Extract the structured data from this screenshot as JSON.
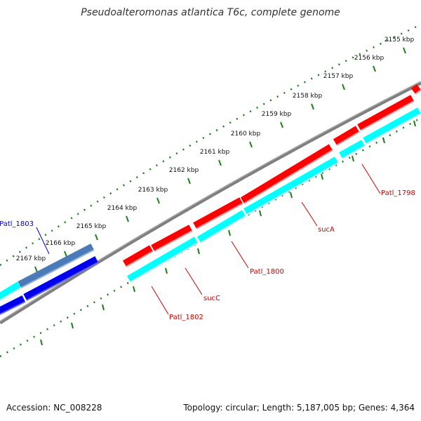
{
  "title": "Pseudoalteromonas atlantica T6c, complete genome",
  "accession": "Accession: NC_008228",
  "summary": "Topology: circular; Length: 5,187,005 bp; Genes: 4,364",
  "colors": {
    "backbone": "#7f7f7f",
    "forward_cds": "#ff0000",
    "reverse_cds": "#00ffff",
    "blue_cds": "#0000ee",
    "steelblue_cds": "#4a7ab8",
    "tick": "#1a7f1a",
    "label_red": "#cc0000",
    "label_blue": "#0000cc"
  },
  "ticks": [
    "2155 kbp",
    "2156 kbp",
    "2157 kbp",
    "2158 kbp",
    "2159 kbp",
    "2160 kbp",
    "2161 kbp",
    "2162 kbp",
    "2163 kbp",
    "2164 kbp",
    "2165 kbp",
    "2166 kbp",
    "2167 kbp"
  ],
  "gene_labels": [
    {
      "text": "Patl_1798",
      "color": "red"
    },
    {
      "text": "sucA",
      "color": "red"
    },
    {
      "text": "Patl_1800",
      "color": "red"
    },
    {
      "text": "sucC",
      "color": "red"
    },
    {
      "text": "Patl_1802",
      "color": "red"
    },
    {
      "text": "Patl_1803",
      "color": "blue"
    }
  ]
}
